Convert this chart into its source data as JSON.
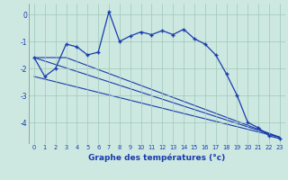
{
  "title": "Graphe des températures (°c)",
  "background_color": "#cce8e0",
  "line_color": "#1a3aad",
  "grid_color": "#a0c8b8",
  "xlim": [
    -0.5,
    23.5
  ],
  "ylim": [
    -4.8,
    0.4
  ],
  "yticks": [
    0,
    -1,
    -2,
    -3,
    -4
  ],
  "xticks": [
    0,
    1,
    2,
    3,
    4,
    5,
    6,
    7,
    8,
    9,
    10,
    11,
    12,
    13,
    14,
    15,
    16,
    17,
    18,
    19,
    20,
    21,
    22,
    23
  ],
  "series1": {
    "x": [
      0,
      1,
      2,
      3,
      4,
      5,
      6,
      7,
      8,
      9,
      10,
      11,
      12,
      13,
      14,
      15,
      16,
      17,
      18,
      19,
      20,
      21,
      22,
      23
    ],
    "y": [
      -1.6,
      -2.3,
      -2.0,
      -1.1,
      -1.2,
      -1.5,
      -1.4,
      0.1,
      -1.0,
      -0.8,
      -0.65,
      -0.75,
      -0.6,
      -0.75,
      -0.55,
      -0.9,
      -1.1,
      -1.5,
      -2.2,
      -3.0,
      -4.0,
      -4.2,
      -4.5,
      -4.6
    ]
  },
  "line2": {
    "x": [
      0,
      3,
      23
    ],
    "y": [
      -1.6,
      -1.6,
      -4.55
    ]
  },
  "line3": {
    "x": [
      0,
      23
    ],
    "y": [
      -1.6,
      -4.55
    ]
  },
  "line4": {
    "x": [
      0,
      23
    ],
    "y": [
      -2.3,
      -4.55
    ]
  }
}
